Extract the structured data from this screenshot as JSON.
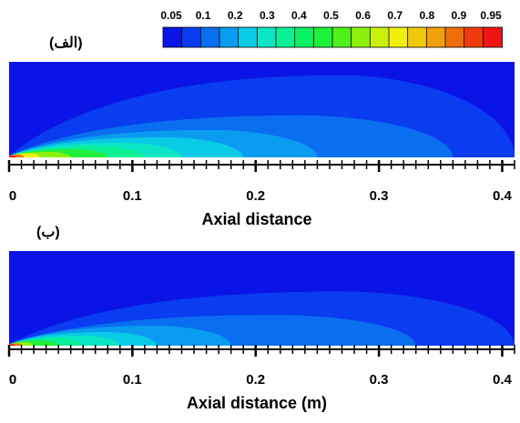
{
  "colorbar": {
    "tick_labels": [
      "0.05",
      "0.1",
      "0.2",
      "0.3",
      "0.4",
      "0.5",
      "0.6",
      "0.7",
      "0.8",
      "0.9",
      "0.95"
    ],
    "colors": [
      "#0a14e6",
      "#0a3cf0",
      "#0a6ef0",
      "#0a9cf0",
      "#0acbe6",
      "#0ae6c3",
      "#0af096",
      "#0af064",
      "#1ef03c",
      "#50f01e",
      "#8cf00a",
      "#c8f00a",
      "#f0f00a",
      "#f0c80a",
      "#f0a00a",
      "#f06e0a",
      "#f03c0a",
      "#f01414"
    ]
  },
  "chart_data": [
    {
      "type": "heatmap",
      "panel_label": "(الف)",
      "xlabel": "Axial distance",
      "x_ticks": [
        "0",
        "0.1",
        "0.2",
        "0.3",
        "0.4"
      ],
      "xlim": [
        0,
        0.41
      ],
      "value_range": [
        0.05,
        0.95
      ],
      "contours": [
        {
          "level": 0.1,
          "color": "#0a3cf0",
          "x_extent": 0.41,
          "height_frac": 0.9
        },
        {
          "level": 0.2,
          "color": "#0a6ef0",
          "x_extent": 0.36,
          "height_frac": 0.46
        },
        {
          "level": 0.3,
          "color": "#0a9cf0",
          "x_extent": 0.25,
          "height_frac": 0.3
        },
        {
          "level": 0.4,
          "color": "#0acbe6",
          "x_extent": 0.19,
          "height_frac": 0.22
        },
        {
          "level": 0.5,
          "color": "#0ae6c3",
          "x_extent": 0.14,
          "height_frac": 0.16
        },
        {
          "level": 0.6,
          "color": "#0af096",
          "x_extent": 0.11,
          "height_frac": 0.12
        },
        {
          "level": 0.7,
          "color": "#1ef03c",
          "x_extent": 0.08,
          "height_frac": 0.09
        },
        {
          "level": 0.8,
          "color": "#8cf00a",
          "x_extent": 0.05,
          "height_frac": 0.06
        },
        {
          "level": 0.85,
          "color": "#f0f00a",
          "x_extent": 0.025,
          "height_frac": 0.045
        },
        {
          "level": 0.9,
          "color": "#f06e0a",
          "x_extent": 0.012,
          "height_frac": 0.03
        },
        {
          "level": 0.95,
          "color": "#f01414",
          "x_extent": 0.006,
          "height_frac": 0.02
        }
      ]
    },
    {
      "type": "heatmap",
      "panel_label": "(ب)",
      "xlabel": "Axial distance (m)",
      "x_ticks": [
        "0",
        "0.1",
        "0.2",
        "0.3",
        "0.4"
      ],
      "xlim": [
        0,
        0.41
      ],
      "value_range": [
        0.05,
        0.95
      ],
      "contours": [
        {
          "level": 0.1,
          "color": "#0a3cf0",
          "x_extent": 0.41,
          "height_frac": 0.6
        },
        {
          "level": 0.2,
          "color": "#0a6ef0",
          "x_extent": 0.33,
          "height_frac": 0.34
        },
        {
          "level": 0.3,
          "color": "#0a9cf0",
          "x_extent": 0.18,
          "height_frac": 0.22
        },
        {
          "level": 0.4,
          "color": "#0acbe6",
          "x_extent": 0.12,
          "height_frac": 0.15
        },
        {
          "level": 0.5,
          "color": "#0ae6c3",
          "x_extent": 0.09,
          "height_frac": 0.11
        },
        {
          "level": 0.6,
          "color": "#0af096",
          "x_extent": 0.06,
          "height_frac": 0.08
        },
        {
          "level": 0.7,
          "color": "#1ef03c",
          "x_extent": 0.04,
          "height_frac": 0.06
        },
        {
          "level": 0.8,
          "color": "#8cf00a",
          "x_extent": 0.02,
          "height_frac": 0.04
        },
        {
          "level": 0.9,
          "color": "#f06e0a",
          "x_extent": 0.01,
          "height_frac": 0.025
        },
        {
          "level": 0.95,
          "color": "#f01414",
          "x_extent": 0.005,
          "height_frac": 0.015
        }
      ]
    }
  ]
}
